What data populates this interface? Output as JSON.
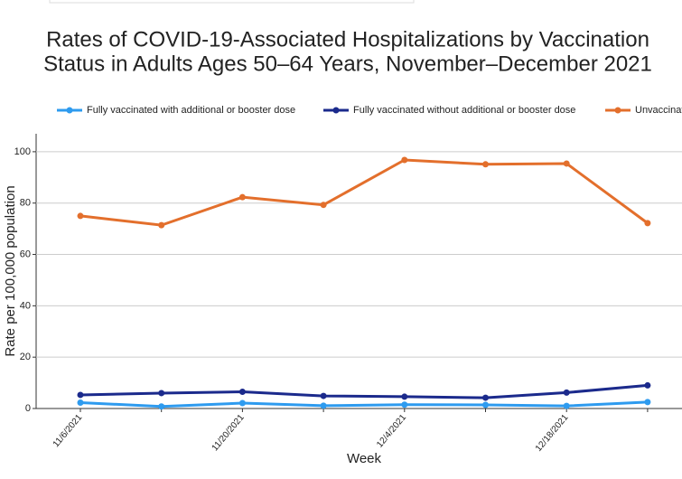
{
  "chart_data": {
    "type": "line",
    "title": [
      "Rates of COVID-19-Associated Hospitalizations by Vaccination",
      "Status in Adults Ages 50–64 Years, November–December 2021"
    ],
    "x_label": "Week",
    "y_label": "Rate per 100,000 population",
    "categories": [
      "11/6/2021",
      null,
      "11/20/2021",
      null,
      "12/4/2021",
      null,
      "12/18/2021",
      null
    ],
    "series": [
      {
        "name": "Fully vaccinated with additional or booster dose",
        "color": "#2e9bef",
        "values": [
          2.3,
          0.8,
          2.1,
          1.1,
          1.5,
          1.4,
          1.0,
          2.5
        ]
      },
      {
        "name": "Fully vaccinated without additional or booster dose",
        "color": "#1b2a8c",
        "values": [
          5.3,
          6.0,
          6.5,
          4.9,
          4.6,
          4.2,
          6.2,
          9.0
        ]
      },
      {
        "name": "Unvaccinated",
        "color": "#e36f2c",
        "values": [
          75.0,
          71.4,
          82.3,
          79.3,
          96.8,
          95.1,
          95.4,
          72.2
        ]
      }
    ],
    "ylim": [
      0,
      107
    ],
    "yticks": [
      0,
      20,
      40,
      60,
      80,
      100
    ],
    "grid": true
  }
}
